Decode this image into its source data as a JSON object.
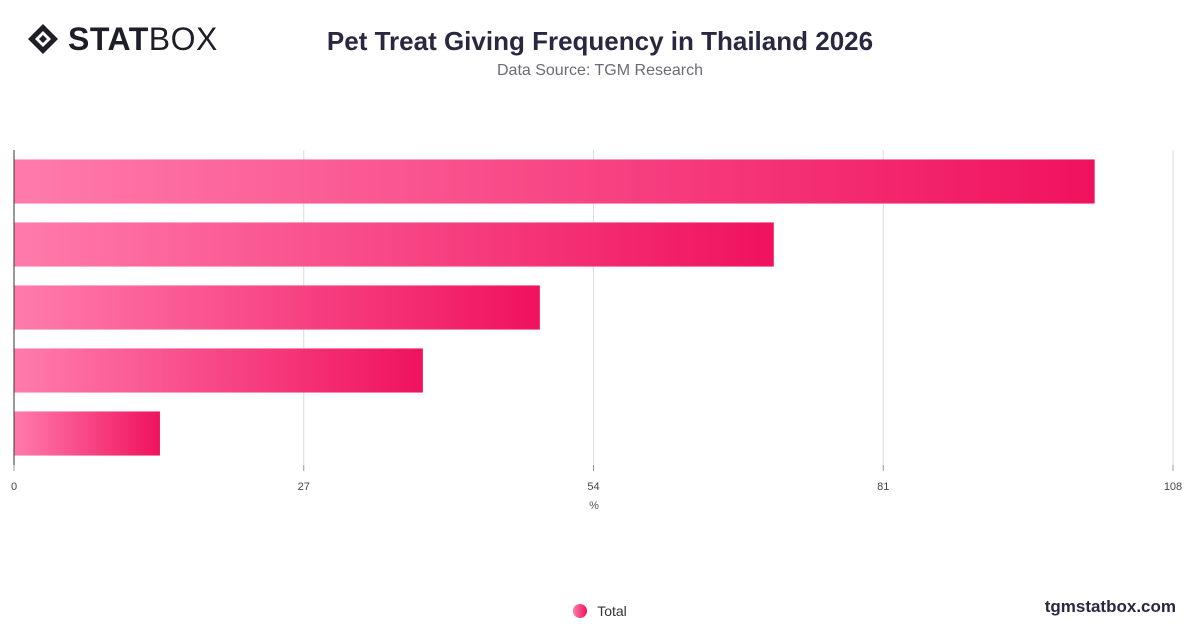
{
  "brand": {
    "logo_bold": "STAT",
    "logo_light": "BOX",
    "watermark": "tgmstatbox.com"
  },
  "header": {
    "title": "Pet Treat Giving Frequency in Thailand 2026",
    "subtitle": "Data Source: TGM Research"
  },
  "colors": {
    "bar_start": "#ff7bac",
    "bar_end": "#f0125e",
    "grid": "#dcdcdc",
    "axis": "#333333"
  },
  "chart_data": {
    "type": "bar",
    "orientation": "horizontal",
    "categories": [
      "",
      "",
      "",
      "",
      ""
    ],
    "series": [
      {
        "name": "Total",
        "values": [
          100.7,
          70.8,
          49,
          38.1,
          13.6
        ]
      }
    ],
    "xlabel": "%",
    "xlim": [
      0,
      108
    ],
    "xticks": [
      0,
      27,
      54,
      81,
      108
    ],
    "grid": true,
    "legend": "bottom-center"
  }
}
